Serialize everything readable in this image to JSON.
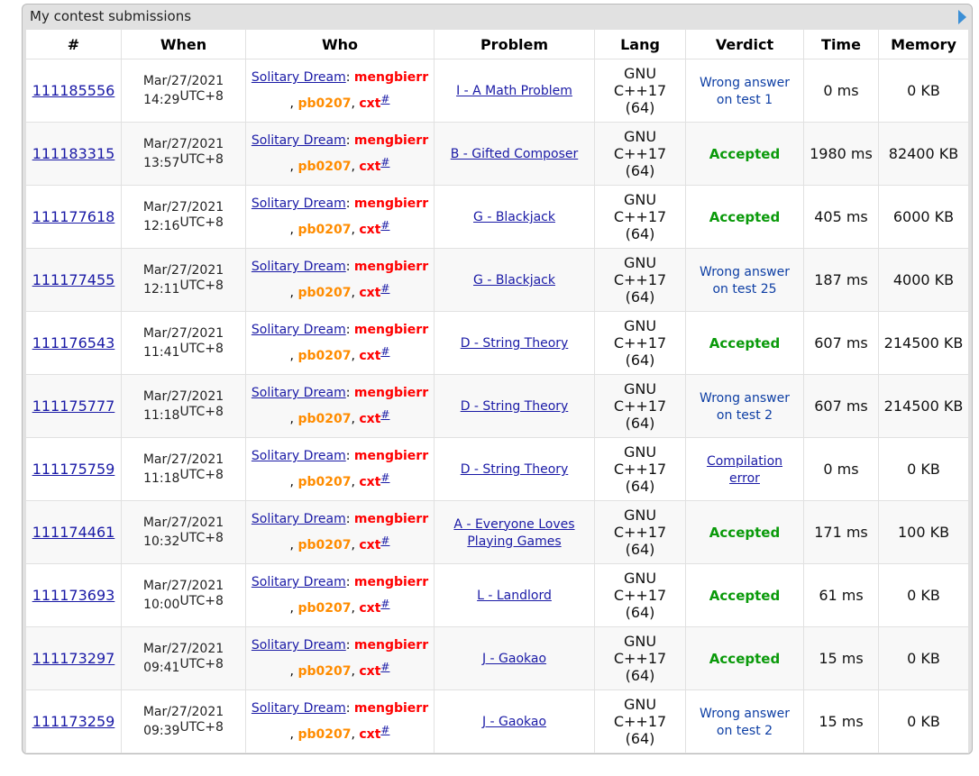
{
  "panel": {
    "title": "My contest submissions"
  },
  "columns": [
    "#",
    "When",
    "Who",
    "Problem",
    "Lang",
    "Verdict",
    "Time",
    "Memory"
  ],
  "team": {
    "name": "Solitary Dream",
    "members": [
      "mengbierr",
      "pb0207",
      "cxt"
    ],
    "hash": "#",
    "sep1": ": ",
    "sep2": ", ",
    "sep3": ", "
  },
  "tz": "UTC+8",
  "lang": {
    "l1": "GNU",
    "l2": "C++17",
    "l3": "(64)"
  },
  "rows": [
    {
      "id": "111185556",
      "date": "Mar/27/2021",
      "time": "14:29",
      "problem": [
        "I - A Math Problem"
      ],
      "verdict": [
        "Wrong answer",
        "on test 1"
      ],
      "vtype": "wrong",
      "t": "0 ms",
      "mem": "0 KB"
    },
    {
      "id": "111183315",
      "date": "Mar/27/2021",
      "time": "13:57",
      "problem": [
        "B - Gifted Composer"
      ],
      "verdict": [
        "Accepted"
      ],
      "vtype": "ok",
      "t": "1980 ms",
      "mem": "82400 KB"
    },
    {
      "id": "111177618",
      "date": "Mar/27/2021",
      "time": "12:16",
      "problem": [
        "G - Blackjack"
      ],
      "verdict": [
        "Accepted"
      ],
      "vtype": "ok",
      "t": "405 ms",
      "mem": "6000 KB"
    },
    {
      "id": "111177455",
      "date": "Mar/27/2021",
      "time": "12:11",
      "problem": [
        "G - Blackjack"
      ],
      "verdict": [
        "Wrong answer",
        "on test 25"
      ],
      "vtype": "wrong",
      "t": "187 ms",
      "mem": "4000 KB"
    },
    {
      "id": "111176543",
      "date": "Mar/27/2021",
      "time": "11:41",
      "problem": [
        "D - String Theory"
      ],
      "verdict": [
        "Accepted"
      ],
      "vtype": "ok",
      "t": "607 ms",
      "mem": "214500 KB"
    },
    {
      "id": "111175777",
      "date": "Mar/27/2021",
      "time": "11:18",
      "problem": [
        "D - String Theory"
      ],
      "verdict": [
        "Wrong answer",
        "on test 2"
      ],
      "vtype": "wrong",
      "t": "607 ms",
      "mem": "214500 KB"
    },
    {
      "id": "111175759",
      "date": "Mar/27/2021",
      "time": "11:18",
      "problem": [
        "D - String Theory"
      ],
      "verdict": [
        "Compilation",
        "error"
      ],
      "vtype": "ce",
      "t": "0 ms",
      "mem": "0 KB"
    },
    {
      "id": "111174461",
      "date": "Mar/27/2021",
      "time": "10:32",
      "problem": [
        "A - Everyone Loves",
        "Playing Games"
      ],
      "verdict": [
        "Accepted"
      ],
      "vtype": "ok",
      "t": "171 ms",
      "mem": "100 KB"
    },
    {
      "id": "111173693",
      "date": "Mar/27/2021",
      "time": "10:00",
      "problem": [
        "L - Landlord"
      ],
      "verdict": [
        "Accepted"
      ],
      "vtype": "ok",
      "t": "61 ms",
      "mem": "0 KB"
    },
    {
      "id": "111173297",
      "date": "Mar/27/2021",
      "time": "09:41",
      "problem": [
        "J - Gaokao"
      ],
      "verdict": [
        "Accepted"
      ],
      "vtype": "ok",
      "t": "15 ms",
      "mem": "0 KB"
    },
    {
      "id": "111173259",
      "date": "Mar/27/2021",
      "time": "09:39",
      "problem": [
        "J - Gaokao"
      ],
      "verdict": [
        "Wrong answer",
        "on test 2"
      ],
      "vtype": "wrong",
      "t": "15 ms",
      "mem": "0 KB"
    }
  ]
}
